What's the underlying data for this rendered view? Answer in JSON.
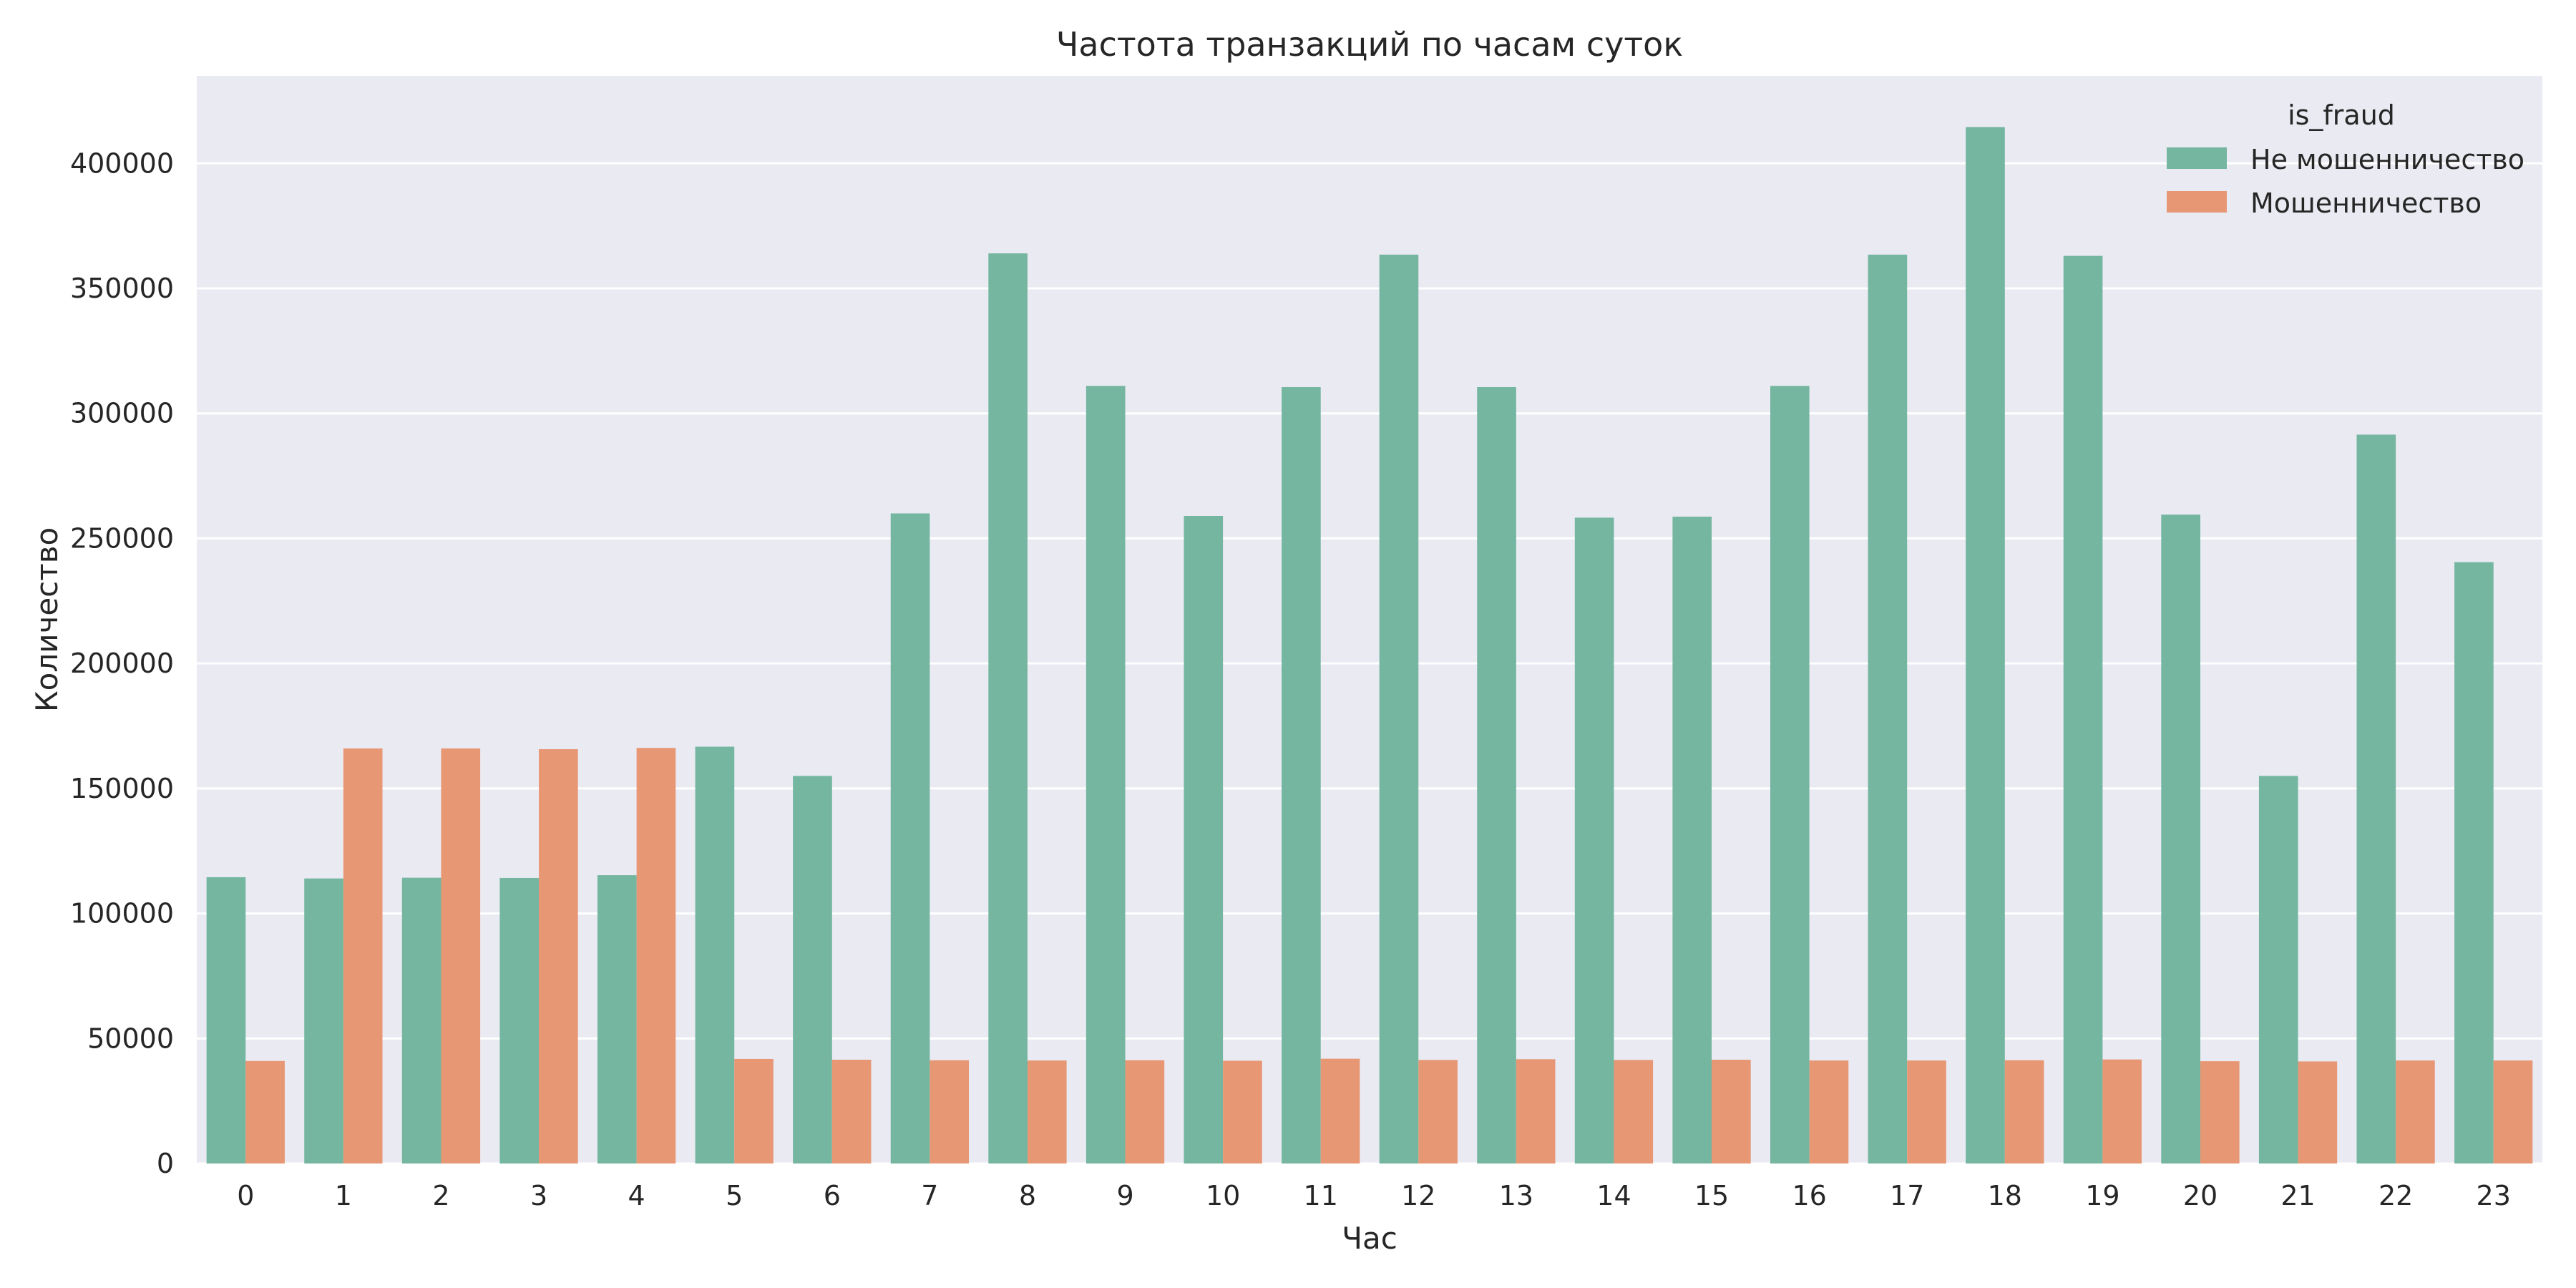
{
  "chart_data": {
    "type": "bar",
    "title": "Частота транзакций по часам суток",
    "xlabel": "Час",
    "ylabel": "Количество",
    "categories": [
      "0",
      "1",
      "2",
      "3",
      "4",
      "5",
      "6",
      "7",
      "8",
      "9",
      "10",
      "11",
      "12",
      "13",
      "14",
      "15",
      "16",
      "17",
      "18",
      "19",
      "20",
      "21",
      "22",
      "23"
    ],
    "series": [
      {
        "name": "Не мошенничество",
        "color": "#74b6a0",
        "values": [
          114500,
          114000,
          114300,
          114200,
          115300,
          166700,
          155000,
          260000,
          364000,
          311000,
          259000,
          310500,
          363500,
          310500,
          258300,
          258700,
          311000,
          363500,
          414500,
          363000,
          259500,
          155000,
          291500,
          240500
        ]
      },
      {
        "name": "Мошенничество",
        "color": "#e89775",
        "values": [
          41000,
          166000,
          166000,
          165700,
          166200,
          41800,
          41500,
          41300,
          41200,
          41300,
          41100,
          41900,
          41400,
          41700,
          41400,
          41500,
          41200,
          41200,
          41300,
          41600,
          40900,
          40800,
          41200,
          41200
        ]
      }
    ],
    "ylim": [
      0,
      435000
    ],
    "yticks": [
      "0",
      "50000",
      "100000",
      "150000",
      "200000",
      "250000",
      "300000",
      "350000",
      "400000"
    ],
    "grid": true,
    "background": "#eaeaf2",
    "legend": {
      "title": "is_fraud",
      "position": "top-right"
    }
  }
}
